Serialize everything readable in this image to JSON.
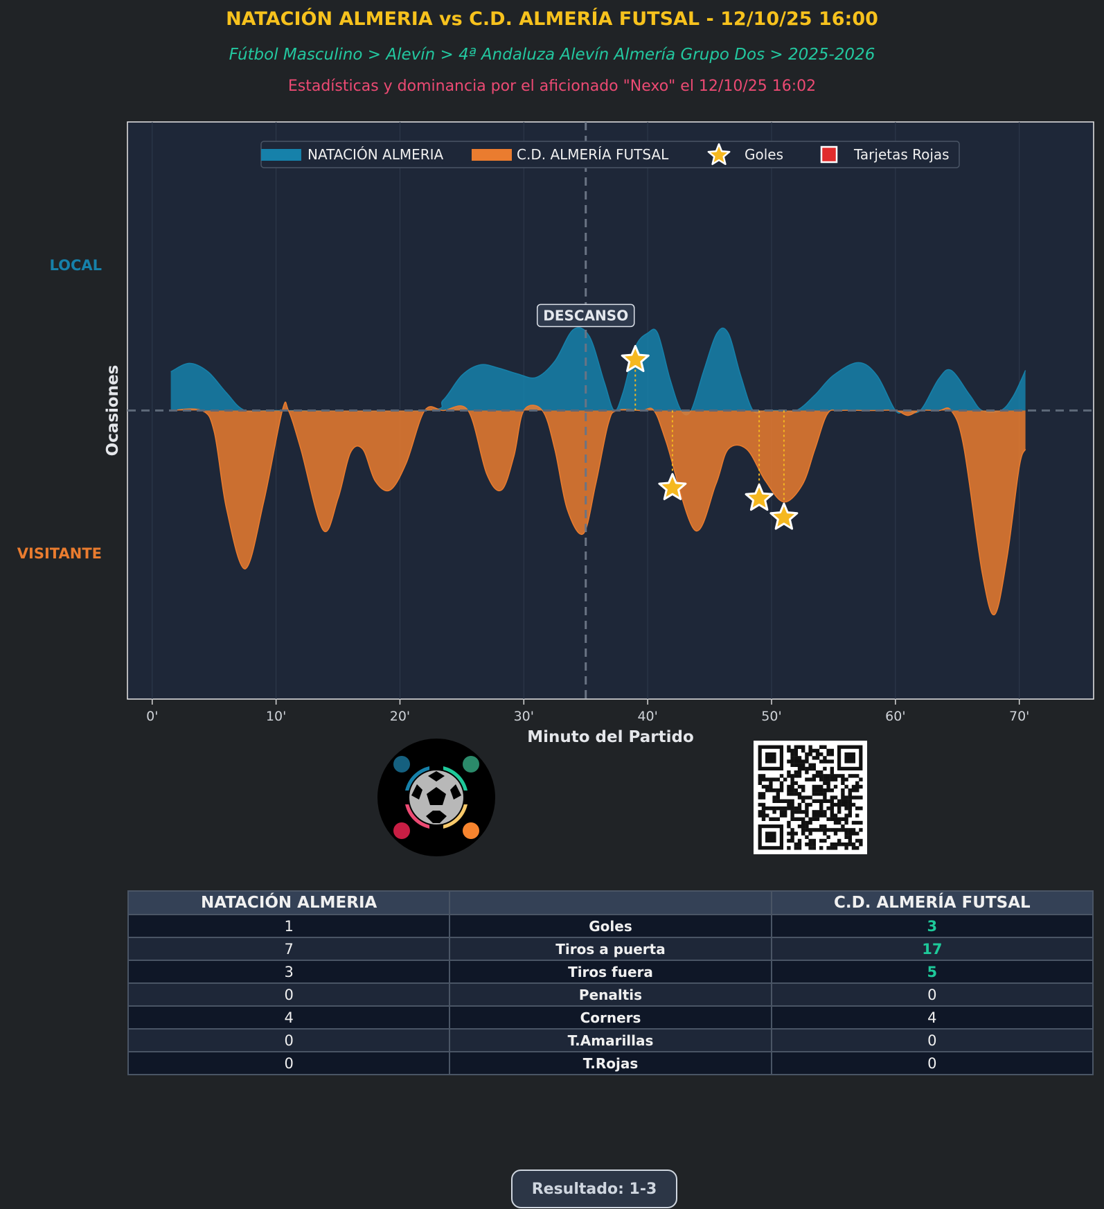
{
  "header": {
    "title": "NATACIÓN ALMERIA vs C.D. ALMERÍA FUTSAL - 12/10/25 16:00",
    "subtitle": "Fútbol Masculino > Alevín > 4ª Andaluza Alevín Almería Grupo Dos > 2025-2026",
    "credit": "Estadísticas y dominancia por el aficionado \"Nexo\" el 12/10/25 16:02"
  },
  "colors": {
    "title": "#f7c21d",
    "subtitle": "#23c8a0",
    "credit": "#ec4a73",
    "home": "#1681aa",
    "away": "#ea7c2f",
    "goal": "#f5b820",
    "red_card": "#e12c2c",
    "plot_bg": "#1e2738",
    "page_bg": "#202326"
  },
  "chart_data": {
    "type": "area",
    "xlabel": "Minuto del Partido",
    "ylabel": "Ocasiones",
    "side_labels": {
      "top": "LOCAL",
      "bottom": "VISITANTE"
    },
    "xlim": [
      -2,
      76
    ],
    "ylim": [
      -4.1,
      4.1
    ],
    "x_ticks": [
      0,
      10,
      20,
      30,
      40,
      50,
      60,
      70
    ],
    "x_tick_labels": [
      "0'",
      "10'",
      "20'",
      "30'",
      "40'",
      "50'",
      "60'",
      "70'"
    ],
    "grid": true,
    "legend_position": "top-center",
    "legend": [
      {
        "label": "NATACIÓN ALMERIA",
        "symbol": "patch",
        "color": "#1681aa"
      },
      {
        "label": "C.D. ALMERÍA FUTSAL",
        "symbol": "patch",
        "color": "#ea7c2f"
      },
      {
        "label": "Goles",
        "symbol": "star",
        "color": "#f5b820"
      },
      {
        "label": "Tarjetas Rojas",
        "symbol": "square",
        "color": "#e12c2c"
      }
    ],
    "halftime": {
      "minute": 35,
      "label": "DESCANSO"
    },
    "series": [
      {
        "name": "NATACIÓN ALMERIA",
        "x": [
          1.5,
          3,
          4.5,
          6,
          7.5,
          10,
          22,
          23.5,
          25,
          26.5,
          28,
          29.5,
          31,
          32.5,
          34,
          35.3,
          36.5,
          37.3,
          38,
          39,
          40,
          40.8,
          41.8,
          42.7,
          43.5,
          44.5,
          45.6,
          46.5,
          47.5,
          48.5,
          49.5,
          50.5,
          52,
          53.5,
          55,
          57,
          58.5,
          60,
          60.8,
          62,
          63.5,
          64.5,
          66,
          67,
          68.5,
          69.5,
          70.5
        ],
        "values": [
          0.55,
          0.67,
          0.55,
          0.25,
          0.0,
          0.0,
          0.0,
          0.15,
          0.5,
          0.65,
          0.6,
          0.52,
          0.47,
          0.7,
          1.15,
          1.05,
          0.4,
          0.0,
          0.25,
          0.9,
          1.1,
          1.1,
          0.45,
          0.0,
          0.0,
          0.55,
          1.1,
          1.1,
          0.5,
          0.0,
          0.0,
          0.0,
          0.0,
          0.22,
          0.5,
          0.68,
          0.5,
          0.0,
          0.0,
          0.0,
          0.45,
          0.57,
          0.22,
          0.0,
          0.0,
          0.2,
          0.57
        ]
      },
      {
        "name": "C.D. ALMERÍA FUTSAL",
        "x": [
          1.5,
          4,
          5,
          6,
          7.5,
          9,
          10.5,
          11,
          12,
          13.8,
          15,
          16,
          17,
          18,
          19.2,
          20.5,
          22,
          23.5,
          25.5,
          27,
          28.2,
          29.2,
          30,
          31.5,
          32.5,
          33.5,
          34.8,
          35.8,
          36.8,
          37.5,
          39.5,
          40.5,
          41.5,
          43.8,
          45.5,
          46.5,
          48,
          49.5,
          51,
          52.5,
          53.5,
          54.5,
          55.5,
          58,
          60,
          61,
          62,
          63.5,
          64.5,
          65.5,
          67,
          68,
          69,
          70,
          70.5
        ],
        "values": [
          0,
          0,
          -0.3,
          -1.4,
          -2.25,
          -1.3,
          0,
          0,
          -0.55,
          -1.7,
          -1.25,
          -0.6,
          -0.55,
          -1.0,
          -1.13,
          -0.75,
          0,
          0,
          0,
          -0.9,
          -1.13,
          -0.65,
          0,
          0,
          -0.55,
          -1.4,
          -1.75,
          -1.05,
          -0.2,
          0,
          0,
          0,
          -0.45,
          -1.7,
          -1.05,
          -0.55,
          -0.55,
          -1.0,
          -1.3,
          -1.05,
          -0.55,
          -0.05,
          0,
          0,
          0,
          -0.07,
          0,
          0,
          0,
          -0.5,
          -2.3,
          -2.9,
          -2.1,
          -0.8,
          -0.55
        ]
      }
    ],
    "goals": [
      {
        "team": "NATACIÓN ALMERIA",
        "minute": 39,
        "y": 0.72
      },
      {
        "team": "C.D. ALMERÍA FUTSAL",
        "minute": 42,
        "y": -1.1
      },
      {
        "team": "C.D. ALMERÍA FUTSAL",
        "minute": 49,
        "y": -1.25
      },
      {
        "team": "C.D. ALMERÍA FUTSAL",
        "minute": 51,
        "y": -1.52
      }
    ],
    "red_cards": []
  },
  "table": {
    "headers": [
      "NATACIÓN ALMERIA",
      "",
      "C.D. ALMERÍA FUTSAL"
    ],
    "rows": [
      {
        "home": "1",
        "stat": "Goles",
        "away": "3",
        "leader": "away"
      },
      {
        "home": "7",
        "stat": "Tiros a puerta",
        "away": "17",
        "leader": "away"
      },
      {
        "home": "3",
        "stat": "Tiros fuera",
        "away": "5",
        "leader": "away"
      },
      {
        "home": "0",
        "stat": "Penaltis",
        "away": "0",
        "leader": ""
      },
      {
        "home": "4",
        "stat": "Corners",
        "away": "4",
        "leader": ""
      },
      {
        "home": "0",
        "stat": "T.Amarillas",
        "away": "0",
        "leader": ""
      },
      {
        "home": "0",
        "stat": "T.Rojas",
        "away": "0",
        "leader": ""
      }
    ]
  },
  "result": {
    "label": "Resultado: 1-3"
  },
  "icons": {
    "logo": "football-community-logo-icon",
    "qr": "qr-code-icon"
  }
}
